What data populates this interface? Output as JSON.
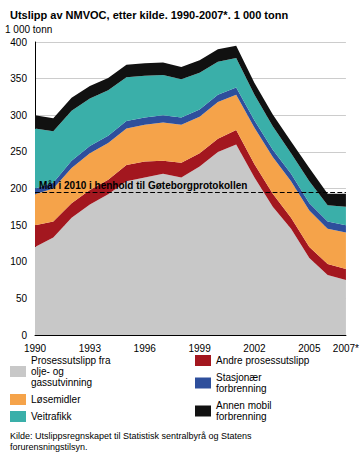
{
  "chart_data": {
    "type": "area",
    "title": "Utslipp av NMVOC, etter kilde. 1990-2007*. 1 000 tonn",
    "y_label": "1 000 tonn",
    "source": "Kilde: Utslippsregnskapet til Statistisk sentralbyrå og Statens forurensningstilsyn.",
    "stacked": true,
    "grid": true,
    "categories": [
      "1990",
      null,
      null,
      "1993",
      null,
      null,
      "1996",
      null,
      null,
      "1999",
      null,
      null,
      "2002",
      null,
      null,
      "2005",
      null,
      "2007*"
    ],
    "series": [
      {
        "name": "Prosessutslipp fra olje- og gassutvinning",
        "color": "#c8c8c8",
        "values": [
          120,
          133,
          160,
          178,
          192,
          210,
          215,
          220,
          215,
          230,
          250,
          260,
          215,
          175,
          145,
          105,
          82,
          75
        ]
      },
      {
        "name": "Andre prosessutslipp",
        "color": "#a3171f",
        "values": [
          30,
          22,
          20,
          20,
          20,
          22,
          22,
          18,
          20,
          18,
          18,
          20,
          18,
          18,
          15,
          15,
          15,
          15
        ]
      },
      {
        "name": "Løsemidler",
        "color": "#f5a34a",
        "values": [
          42,
          45,
          48,
          50,
          50,
          50,
          50,
          52,
          52,
          50,
          50,
          48,
          50,
          50,
          50,
          50,
          48,
          50
        ]
      },
      {
        "name": "Stasjonær forbrenning",
        "color": "#2e4f9c",
        "values": [
          8,
          8,
          10,
          10,
          10,
          10,
          10,
          10,
          10,
          10,
          10,
          10,
          10,
          10,
          10,
          10,
          10,
          10
        ]
      },
      {
        "name": "Veitrafikk",
        "color": "#3aafa9",
        "values": [
          82,
          70,
          68,
          65,
          62,
          60,
          57,
          55,
          52,
          50,
          45,
          40,
          35,
          32,
          28,
          30,
          22,
          25
        ]
      },
      {
        "name": "Annen mobil forbrenning",
        "color": "#111111",
        "values": [
          18,
          18,
          18,
          17,
          17,
          17,
          17,
          17,
          17,
          17,
          17,
          17,
          16,
          16,
          16,
          18,
          16,
          18
        ]
      }
    ],
    "annotations": [
      {
        "text": "Mål i 2010 i henhold til Gøteborgprotokollen",
        "value": 195,
        "line_style": "dashed"
      }
    ],
    "ylim": [
      0,
      400
    ],
    "yticks": [
      0,
      50,
      100,
      150,
      200,
      250,
      300,
      350,
      400
    ]
  }
}
